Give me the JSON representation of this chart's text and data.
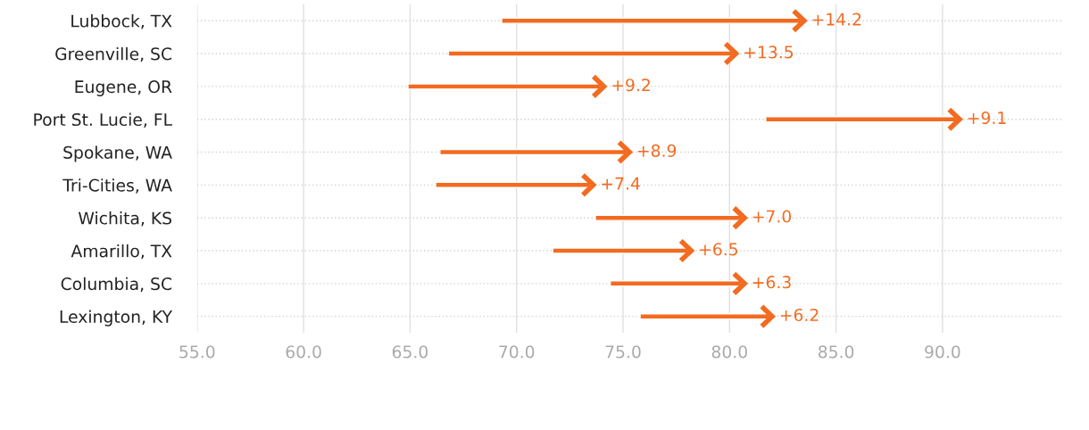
{
  "chart_data": {
    "type": "bar",
    "orientation": "horizontal",
    "categories": [
      "Lubbock, TX",
      "Greenville, SC",
      "Eugene, OR",
      "Port St. Lucie, FL",
      "Spokane, WA",
      "Tri-Cities, WA",
      "Wichita, KS",
      "Amarillo, TX",
      "Columbia, SC",
      "Lexington, KY"
    ],
    "base": [
      69.3,
      66.8,
      64.9,
      81.7,
      66.4,
      66.2,
      73.7,
      71.7,
      74.4,
      75.8
    ],
    "values": [
      14.2,
      13.5,
      9.2,
      9.1,
      8.9,
      7.4,
      7.0,
      6.5,
      6.3,
      6.2
    ],
    "value_labels": [
      "+14.2",
      "+13.5",
      "+9.2",
      "+9.1",
      "+8.9",
      "+7.4",
      "+7.0",
      "+6.5",
      "+6.3",
      "+6.2"
    ],
    "color": "#f26b21",
    "xlim": [
      55,
      95.6
    ],
    "xticks": [
      {
        "value": 55,
        "label": "55.0"
      },
      {
        "value": 60,
        "label": "60.0"
      },
      {
        "value": 65,
        "label": "65.0"
      },
      {
        "value": 70,
        "label": "70.0"
      },
      {
        "value": 75,
        "label": "75.0"
      },
      {
        "value": 80,
        "label": "80.0"
      },
      {
        "value": 85,
        "label": "85.0"
      },
      {
        "value": 90,
        "label": "90.0"
      }
    ],
    "grid": true
  }
}
